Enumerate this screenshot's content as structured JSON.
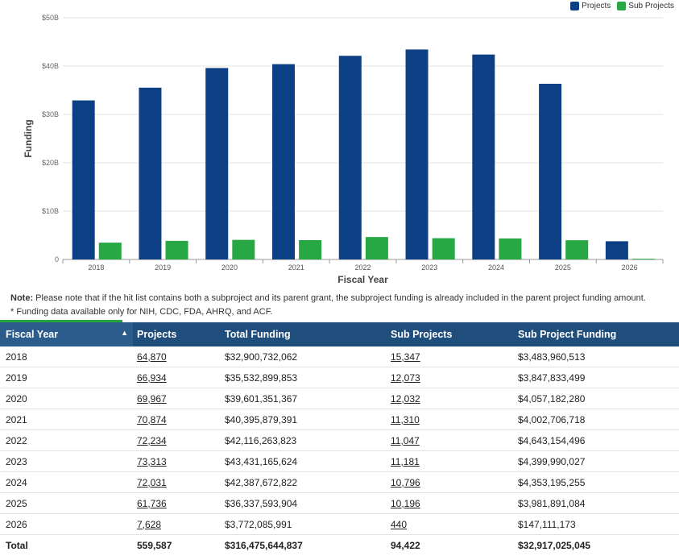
{
  "legend": {
    "projects_label": "Projects",
    "sub_projects_label": "Sub Projects"
  },
  "colors": {
    "projects": "#0d3f85",
    "sub_projects": "#28a745",
    "header_bg": "#1f4e7c"
  },
  "chart_data": {
    "type": "bar",
    "categories": [
      "2018",
      "2019",
      "2020",
      "2021",
      "2022",
      "2023",
      "2024",
      "2025",
      "2026"
    ],
    "series": [
      {
        "name": "Projects",
        "values": [
          32.9,
          35.53,
          39.6,
          40.4,
          42.12,
          43.43,
          42.39,
          36.34,
          3.77
        ]
      },
      {
        "name": "Sub Projects",
        "values": [
          3.48,
          3.85,
          4.06,
          4.0,
          4.64,
          4.4,
          4.35,
          3.98,
          0.15
        ]
      }
    ],
    "xlabel": "Fiscal Year",
    "ylabel": "Funding",
    "ylim": [
      0,
      50
    ],
    "yticks": [
      "0",
      "$10B",
      "$20B",
      "$30B",
      "$40B",
      "$50B"
    ],
    "grid": true,
    "legend_position": "top-right"
  },
  "note": {
    "bold": "Note:",
    "text": " Please note that if the hit list contains both a subproject and its parent grant, the subproject funding is already included in the parent project funding amount.",
    "line2": "* Funding data available only for NIH, CDC, FDA, AHRQ, and ACF."
  },
  "table": {
    "columns": [
      "Fiscal Year",
      "Projects",
      "Total Funding",
      "Sub Projects",
      "Sub Project Funding"
    ],
    "sort_indicator": "▲",
    "rows": [
      [
        "2018",
        "64,870",
        "$32,900,732,062",
        "15,347",
        "$3,483,960,513"
      ],
      [
        "2019",
        "66,934",
        "$35,532,899,853",
        "12,073",
        "$3,847,833,499"
      ],
      [
        "2020",
        "69,967",
        "$39,601,351,367",
        "12,032",
        "$4,057,182,280"
      ],
      [
        "2021",
        "70,874",
        "$40,395,879,391",
        "11,310",
        "$4,002,706,718"
      ],
      [
        "2022",
        "72,234",
        "$42,116,263,823",
        "11,047",
        "$4,643,154,496"
      ],
      [
        "2023",
        "73,313",
        "$43,431,165,624",
        "11,181",
        "$4,399,990,027"
      ],
      [
        "2024",
        "72,031",
        "$42,387,672,822",
        "10,796",
        "$4,353,195,255"
      ],
      [
        "2025",
        "61,736",
        "$36,337,593,904",
        "10,196",
        "$3,981,891,084"
      ],
      [
        "2026",
        "7,628",
        "$3,772,085,991",
        "440",
        "$147,111,173"
      ]
    ],
    "total": [
      "Total",
      "559,587",
      "$316,475,644,837",
      "94,422",
      "$32,917,025,045"
    ]
  }
}
